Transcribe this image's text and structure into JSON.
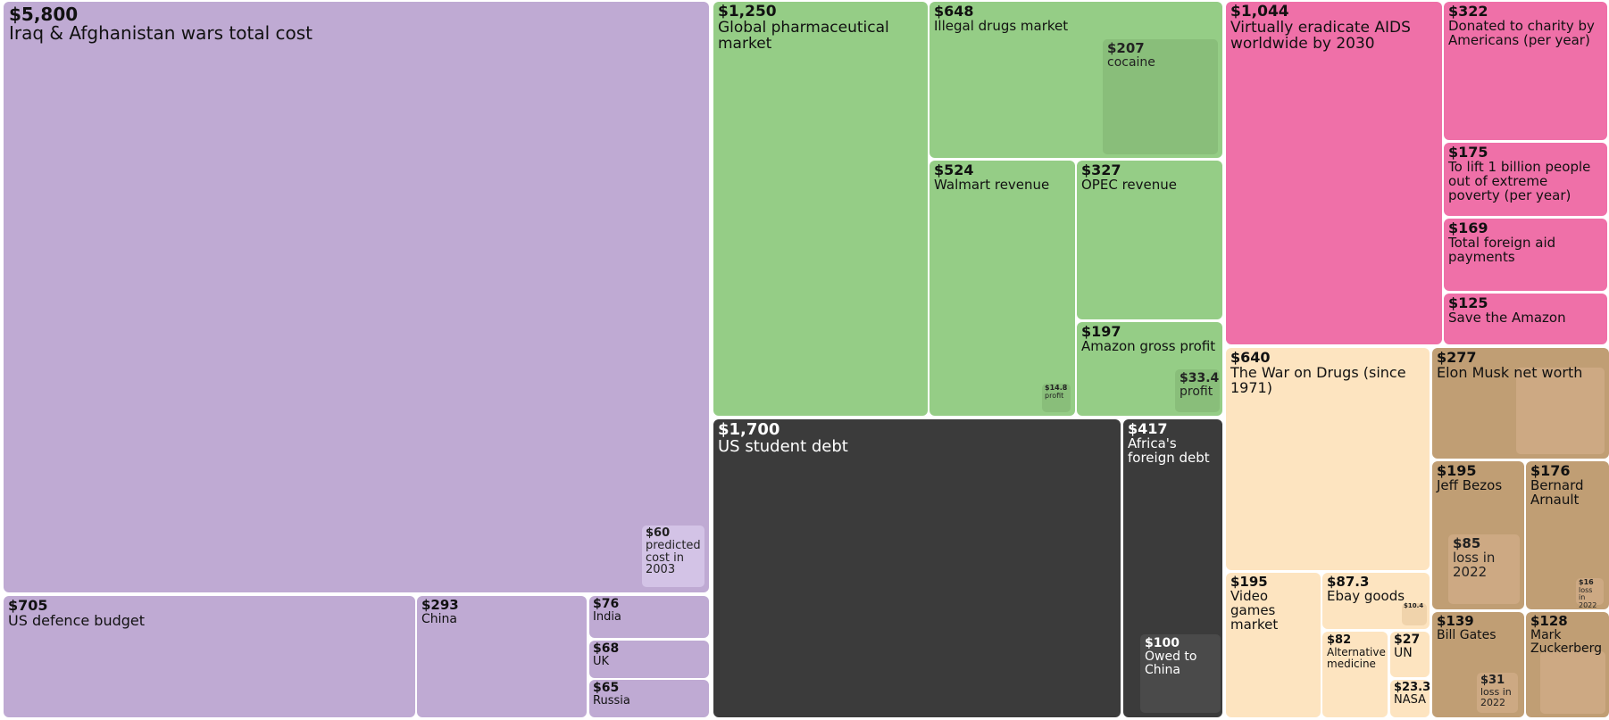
{
  "chart_data": {
    "type": "treemap",
    "unit": "$",
    "colors": {
      "purple": "#bfaad3",
      "purple_sub": "#d3c3e6",
      "green": "#95cd86",
      "green_sub": "#89be7a",
      "dark": "#3b3b3b",
      "dark_sub": "#4a4a4a",
      "pink": "#ef70a8",
      "cream": "#fde4c0",
      "cream_sub": "#f0d3ab",
      "tan": "#c09e74",
      "tan_sub": "#cda983"
    },
    "items": [
      {
        "id": "wars",
        "value": "$5,800",
        "label": "Iraq & Afghanistan wars total cost",
        "color": "purple"
      },
      {
        "id": "wars_2003",
        "value": "$60",
        "label": "predicted cost in 2003",
        "color": "purple_sub",
        "parent": "wars"
      },
      {
        "id": "us_defence",
        "value": "$705",
        "label": "US defence budget",
        "color": "purple"
      },
      {
        "id": "china_def",
        "value": "$293",
        "label": "China",
        "color": "purple"
      },
      {
        "id": "india",
        "value": "$76",
        "label": "India",
        "color": "purple"
      },
      {
        "id": "uk",
        "value": "$68",
        "label": "UK",
        "color": "purple"
      },
      {
        "id": "russia",
        "value": "$65",
        "label": "Russia",
        "color": "purple"
      },
      {
        "id": "pharma",
        "value": "$1,250",
        "label": "Global pharmaceutical market",
        "color": "green"
      },
      {
        "id": "drugs",
        "value": "$648",
        "label": "Illegal drugs market",
        "color": "green"
      },
      {
        "id": "cocaine",
        "value": "$207",
        "label": "cocaine",
        "color": "green_sub",
        "parent": "drugs"
      },
      {
        "id": "walmart",
        "value": "$524",
        "label": "Walmart revenue",
        "color": "green"
      },
      {
        "id": "walmart_profit",
        "value": "$14.8",
        "label": "profit",
        "color": "green_sub",
        "parent": "walmart"
      },
      {
        "id": "opec",
        "value": "$327",
        "label": "OPEC revenue",
        "color": "green"
      },
      {
        "id": "amazon",
        "value": "$197",
        "label": "Amazon gross profit",
        "color": "green"
      },
      {
        "id": "amazon_profit",
        "value": "$33.4",
        "label": "profit",
        "color": "green_sub",
        "parent": "amazon"
      },
      {
        "id": "student_debt",
        "value": "$1,700",
        "label": "US student debt",
        "color": "dark"
      },
      {
        "id": "africa_debt",
        "value": "$417",
        "label": "Africa's foreign debt",
        "color": "dark"
      },
      {
        "id": "owed_china",
        "value": "$100",
        "label": "Owed to China",
        "color": "dark_sub",
        "parent": "africa_debt"
      },
      {
        "id": "aids",
        "value": "$1,044",
        "label": "Virtually eradicate AIDS worldwide by 2030",
        "color": "pink"
      },
      {
        "id": "charity",
        "value": "$322",
        "label": "Donated to charity by Americans (per year)",
        "color": "pink"
      },
      {
        "id": "poverty",
        "value": "$175",
        "label": "To lift 1 billion people out of extreme poverty (per year)",
        "color": "pink"
      },
      {
        "id": "foreign_aid",
        "value": "$169",
        "label": "Total foreign aid payments",
        "color": "pink"
      },
      {
        "id": "amazon_forest",
        "value": "$125",
        "label": "Save the Amazon",
        "color": "pink"
      },
      {
        "id": "war_drugs",
        "value": "$640",
        "label": "The War on Drugs (since 1971)",
        "color": "cream"
      },
      {
        "id": "video_games",
        "value": "$195",
        "label": "Video games market",
        "color": "cream"
      },
      {
        "id": "ebay",
        "value": "$87.3",
        "label": "Ebay goods",
        "color": "cream"
      },
      {
        "id": "ebay_sub",
        "value": "$10.4",
        "label": "",
        "color": "cream_sub",
        "parent": "ebay"
      },
      {
        "id": "alt_medicine",
        "value": "$82",
        "label": "Alternative medicine",
        "color": "cream"
      },
      {
        "id": "un",
        "value": "$27",
        "label": "UN",
        "color": "cream"
      },
      {
        "id": "nasa",
        "value": "$23.3",
        "label": "NASA",
        "color": "cream"
      },
      {
        "id": "musk",
        "value": "$277",
        "label": "Elon Musk net worth",
        "color": "tan"
      },
      {
        "id": "bezos",
        "value": "$195",
        "label": "Jeff Bezos",
        "color": "tan"
      },
      {
        "id": "bezos_loss",
        "value": "$85",
        "label": "loss in 2022",
        "color": "tan_sub",
        "parent": "bezos"
      },
      {
        "id": "arnault",
        "value": "$176",
        "label": "Bernard Arnault",
        "color": "tan"
      },
      {
        "id": "arnault_loss",
        "value": "$16",
        "label": "loss in 2022",
        "color": "tan_sub",
        "parent": "arnault"
      },
      {
        "id": "gates",
        "value": "$139",
        "label": "Bill Gates",
        "color": "tan"
      },
      {
        "id": "gates_loss",
        "value": "$31",
        "label": "loss in 2022",
        "color": "tan_sub",
        "parent": "gates"
      },
      {
        "id": "zuckerberg",
        "value": "$128",
        "label": "Mark Zuckerberg",
        "color": "tan"
      }
    ]
  }
}
